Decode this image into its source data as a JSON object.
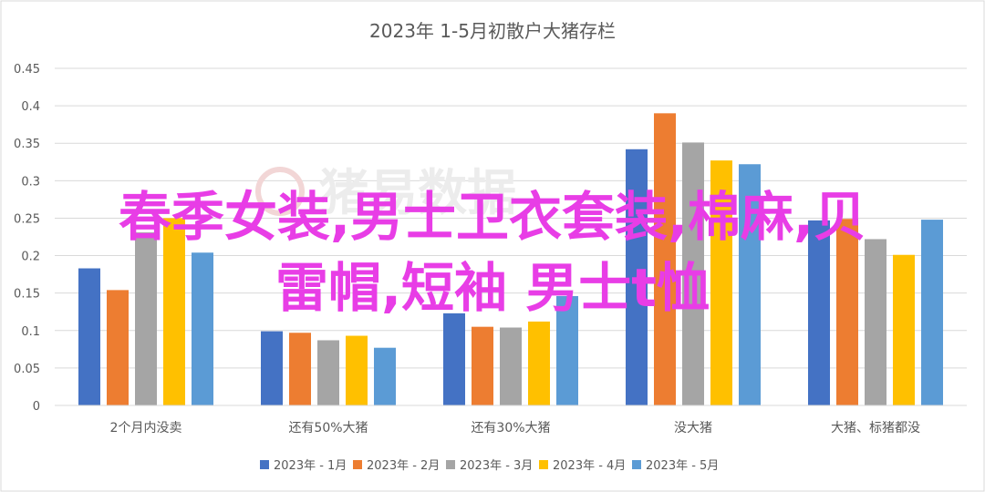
{
  "chart_data": {
    "type": "bar",
    "title": "2023年 1-5月初散户大猪存栏",
    "categories": [
      "2个月内没卖",
      "还有50%大猪",
      "还有30%大猪",
      "没大猪",
      "大猪、标猪都没"
    ],
    "series": [
      {
        "name": "2023年 - 1月",
        "color": "#4472c4",
        "values": [
          0.183,
          0.099,
          0.123,
          0.342,
          0.247
        ]
      },
      {
        "name": "2023年 - 2月",
        "color": "#ed7d31",
        "values": [
          0.154,
          0.097,
          0.105,
          0.39,
          0.249
        ]
      },
      {
        "name": "2023年 - 3月",
        "color": "#a5a5a5",
        "values": [
          0.231,
          0.087,
          0.104,
          0.351,
          0.222
        ]
      },
      {
        "name": "2023年 - 4月",
        "color": "#ffc000",
        "values": [
          0.25,
          0.093,
          0.112,
          0.327,
          0.201
        ]
      },
      {
        "name": "2023年 - 5月",
        "color": "#5b9bd5",
        "values": [
          0.204,
          0.077,
          0.146,
          0.322,
          0.248
        ]
      }
    ],
    "yticks": [
      "0",
      "0.05",
      "0.1",
      "0.15",
      "0.2",
      "0.25",
      "0.3",
      "0.35",
      "0.4",
      "0.45"
    ],
    "ylim": [
      0,
      0.45
    ],
    "grid": true,
    "legend": "bottom"
  },
  "watermark": "猪易数据",
  "overlay_text": {
    "line1": "春季女装,男士卫衣套装,棉麻,贝",
    "line2": "雷帽,短袖 男士t恤"
  }
}
